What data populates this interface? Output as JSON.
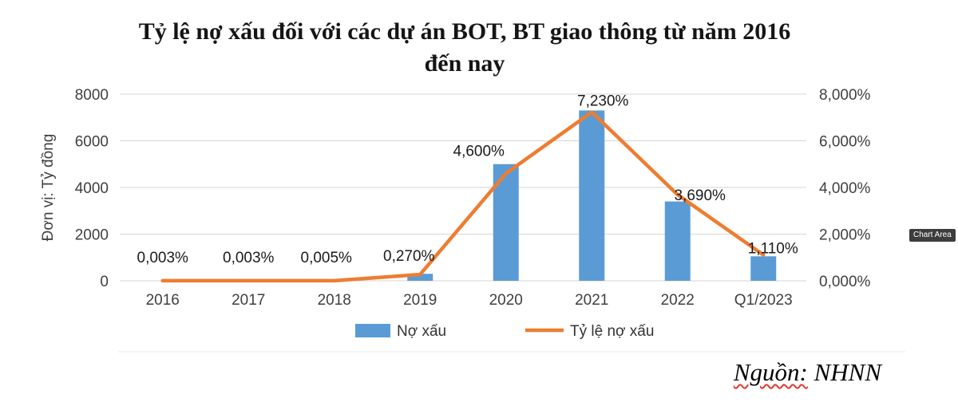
{
  "chart_data": {
    "type": "bar",
    "subtype": "combo-bar-line",
    "title": "Tỷ lệ nợ xấu đối với các dự án BOT, BT giao thông từ năm 2016\nđến nay",
    "categories": [
      "2016",
      "2017",
      "2018",
      "2019",
      "2020",
      "2021",
      "2022",
      "Q1/2023"
    ],
    "series": [
      {
        "name": "Nợ xấu",
        "type": "bar",
        "axis": "left",
        "color": "#5B9BD5",
        "values": [
          0,
          0,
          0,
          300,
          5000,
          7300,
          3400,
          1050
        ]
      },
      {
        "name": "Tỷ lệ nợ xấu",
        "type": "line",
        "axis": "right",
        "color": "#ED7D31",
        "values": [
          0.003,
          0.003,
          0.005,
          0.27,
          4.6,
          7.23,
          3.69,
          1.11
        ],
        "labels": [
          "0,003%",
          "0,003%",
          "0,005%",
          "0,270%",
          "4,600%",
          "7,230%",
          "3,690%",
          "1,110%"
        ]
      }
    ],
    "left_axis": {
      "title": "Đơn vị: Tỷ đồng",
      "min": 0,
      "max": 8000,
      "ticks": [
        "0",
        "2000",
        "4000",
        "6000",
        "8000"
      ]
    },
    "right_axis": {
      "min": 0,
      "max": 8,
      "ticks": [
        "0,000%",
        "2,000%",
        "4,000%",
        "6,000%",
        "8,000%"
      ]
    },
    "grid": true,
    "legend_position": "bottom"
  },
  "tooltip": {
    "label": "Chart Area"
  },
  "source": {
    "prefix": "Nguồn:",
    "value": "NHNN"
  }
}
